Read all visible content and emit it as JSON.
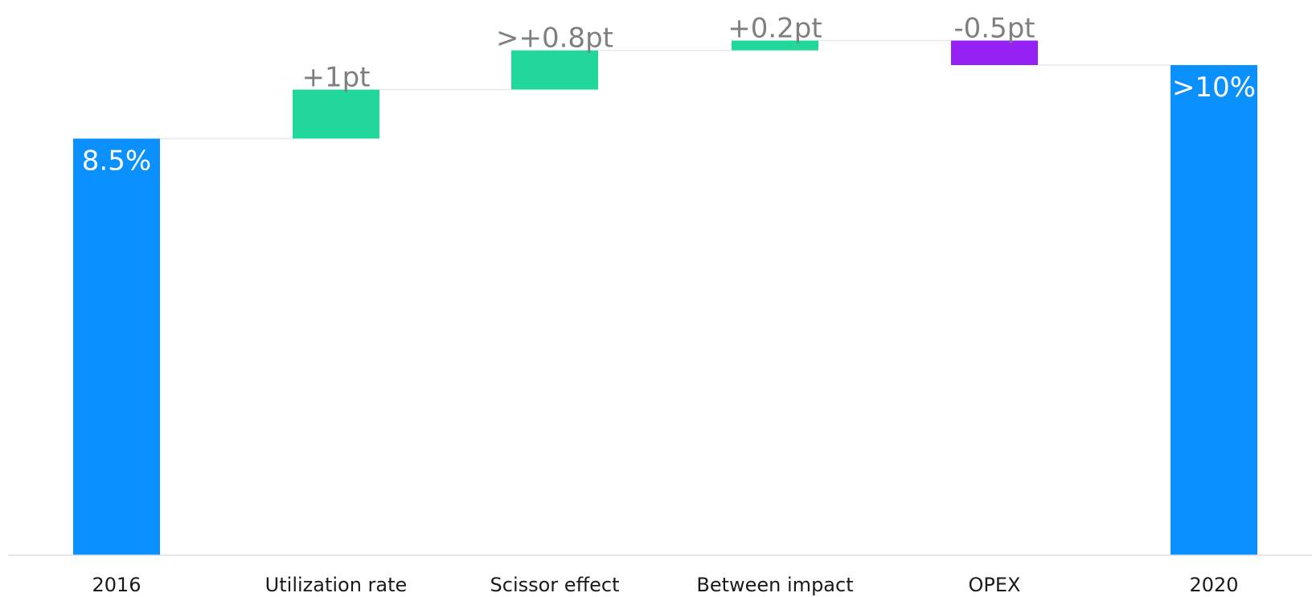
{
  "chart_data": {
    "type": "bar",
    "subtype": "waterfall",
    "title": "",
    "xlabel": "",
    "ylabel": "",
    "ylim": [
      0,
      10.5
    ],
    "grid": false,
    "legend": "none",
    "categories": [
      "2016",
      "Utilization rate",
      "Scissor effect",
      "Between impact",
      "OPEX",
      "2020"
    ],
    "values": [
      8.5,
      1.0,
      0.8,
      0.2,
      -0.5,
      10.0
    ],
    "kinds": [
      "total",
      "delta",
      "delta",
      "delta",
      "delta",
      "total"
    ],
    "labels": [
      "8.5%",
      "+1pt",
      ">+0.8pt",
      "+0.2pt",
      "-0.5pt",
      ">10%"
    ],
    "colors": {
      "total": "#0a90ff",
      "increase": "#22d79b",
      "decrease": "#9521f5",
      "connector": "#e8e8e8",
      "axis": "#dddddd"
    }
  }
}
